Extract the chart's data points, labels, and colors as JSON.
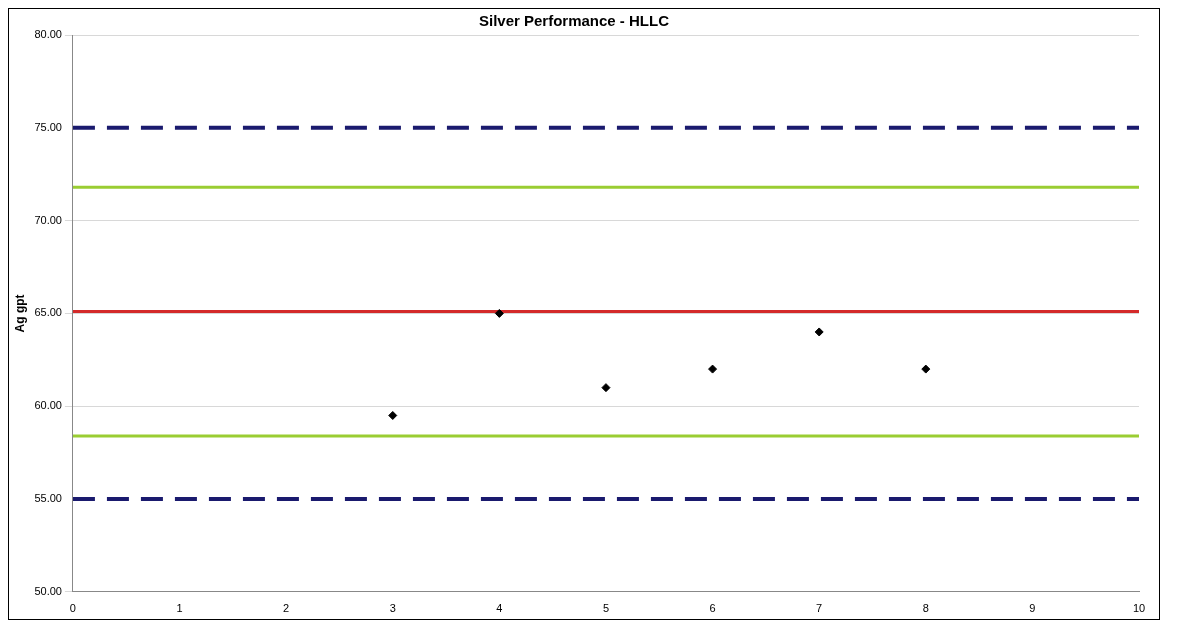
{
  "chart_data": {
    "type": "scatter",
    "title": "Silver Performance - HLLC",
    "ylabel": "Ag gpt",
    "x": [
      3,
      4,
      5,
      6,
      7,
      8
    ],
    "series": [
      {
        "color": "#000000",
        "values": [
          59.5,
          65,
          61,
          62,
          64,
          62
        ]
      }
    ],
    "xlim": [
      0,
      10
    ],
    "xticks": [
      0,
      1,
      2,
      3,
      4,
      5,
      6,
      7,
      8,
      9,
      10
    ],
    "ylim": [
      50,
      80
    ],
    "yticks": [
      {
        "value": 50,
        "label": "50.00"
      },
      {
        "value": 55,
        "label": "55.00"
      },
      {
        "value": 60,
        "label": "60.00"
      },
      {
        "value": 65,
        "label": "65.00"
      },
      {
        "value": 70,
        "label": "70.00"
      },
      {
        "value": 75,
        "label": "75.00"
      },
      {
        "value": 80,
        "label": "80.00"
      }
    ],
    "ref_lines": [
      {
        "axis": "y",
        "value": 75,
        "color": "#1a1a6e",
        "line_style": "dashed"
      },
      {
        "axis": "y",
        "value": 71.8,
        "color": "#9acd32",
        "line_style": "solid"
      },
      {
        "axis": "y",
        "value": 65.1,
        "color": "#d42a2a",
        "line_style": "solid"
      },
      {
        "axis": "y",
        "value": 58.4,
        "color": "#9acd32",
        "line_style": "solid"
      },
      {
        "axis": "y",
        "value": 55,
        "color": "#1a1a6e",
        "line_style": "dashed"
      }
    ],
    "grid": "y",
    "marker": "diamond",
    "legend": false
  }
}
